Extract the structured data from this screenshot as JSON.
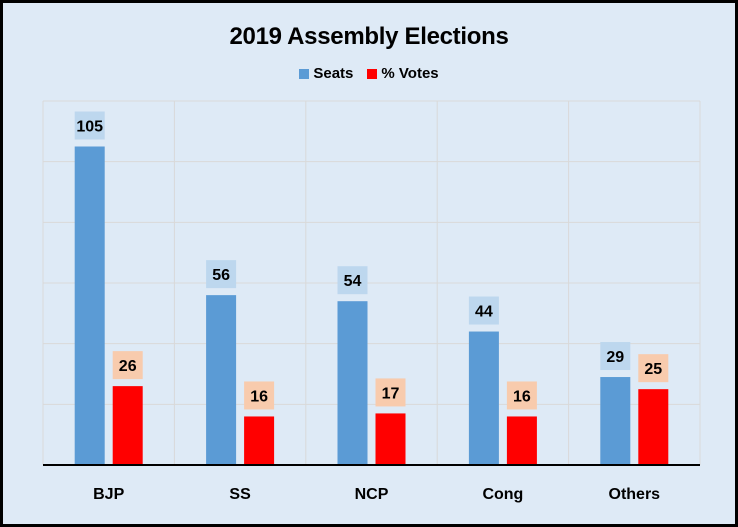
{
  "chart_data": {
    "type": "bar",
    "title": "2019 Assembly Elections",
    "xlabel": "",
    "ylabel": "",
    "ylim": [
      0,
      120
    ],
    "grid": true,
    "legend_position": "top-center",
    "categories": [
      "BJP",
      "SS",
      "NCP",
      "Cong",
      "Others"
    ],
    "series": [
      {
        "name": "Seats",
        "color": "#5B9BD5",
        "label_bg": "#BDD7EE",
        "values": [
          105,
          56,
          54,
          44,
          29
        ]
      },
      {
        "name": "% Votes",
        "color": "#FF0000",
        "label_bg": "#F8CBAD",
        "values": [
          26,
          16,
          17,
          16,
          25
        ]
      }
    ]
  },
  "colors": {
    "background": "#DEEAF6",
    "gridline": "#D9D9D9",
    "axis": "#000000",
    "border": "#000000"
  }
}
